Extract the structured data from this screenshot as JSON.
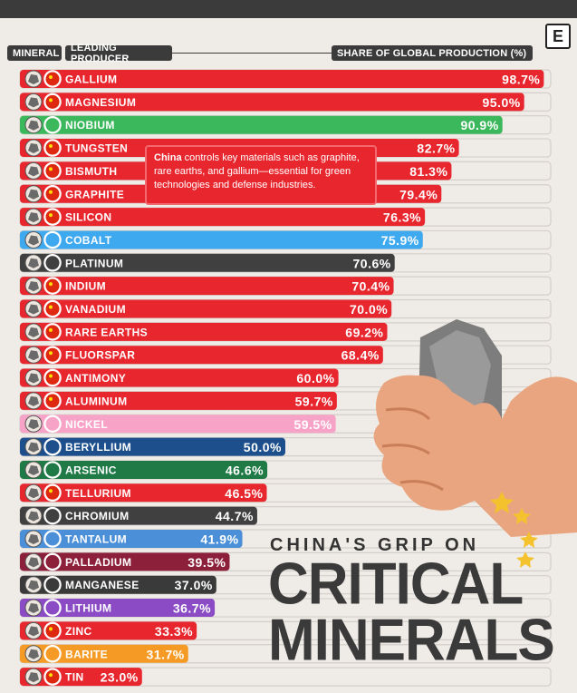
{
  "header": {
    "mineral_label": "MINERAL",
    "producer_label": "LEADING PRODUCER",
    "share_label": "SHARE OF GLOBAL PRODUCTION (%)",
    "logo_letter": "E"
  },
  "callout": {
    "bold": "China",
    "text": " controls key materials such as graphite, rare earths, and gallium—essential for green technologies and defense industries."
  },
  "title": {
    "line1": "CHINA'S GRIP ON",
    "line2": "CRITICAL",
    "line3": "MINERALS"
  },
  "colors": {
    "China": "#e8262e",
    "Brazil": "#3cb85c",
    "DR Congo": "#3fa9f0",
    "South Africa": "#404040",
    "Indonesia": "#f7a3c8",
    "USA": "#1c4f8c",
    "Peru": "#1f7a46",
    "Mozambique": "#4a8fd8",
    "Russia": "#8c1f3a",
    "Gabon": "#3a3a3a",
    "Australia": "#8a4bc4",
    "India": "#f59b25"
  },
  "chart_data": {
    "type": "bar",
    "xlim": [
      0,
      100
    ],
    "categories": [
      "GALLIUM",
      "MAGNESIUM",
      "NIOBIUM",
      "TUNGSTEN",
      "BISMUTH",
      "GRAPHITE",
      "SILICON",
      "COBALT",
      "PLATINUM",
      "INDIUM",
      "VANADIUM",
      "RARE EARTHS",
      "FLUORSPAR",
      "ANTIMONY",
      "ALUMINUM",
      "NICKEL",
      "BERYLLIUM",
      "ARSENIC",
      "TELLURIUM",
      "CHROMIUM",
      "TANTALUM",
      "PALLADIUM",
      "MANGANESE",
      "LITHIUM",
      "ZINC",
      "BARITE",
      "TIN"
    ],
    "values": [
      98.7,
      95.0,
      90.9,
      82.7,
      81.3,
      79.4,
      76.3,
      75.9,
      70.6,
      70.4,
      70.0,
      69.2,
      68.4,
      60.0,
      59.7,
      59.5,
      50.0,
      46.6,
      46.5,
      44.7,
      41.9,
      39.5,
      37.0,
      36.7,
      33.3,
      31.7,
      23.0
    ],
    "value_labels": [
      "98.7%",
      "95.0%",
      "90.9%",
      "82.7%",
      "81.3%",
      "79.4%",
      "76.3%",
      "75.9%",
      "70.6%",
      "70.4%",
      "70.0%",
      "69.2%",
      "68.4%",
      "60.0%",
      "59.7%",
      "59.5%",
      "50.0%",
      "46.6%",
      "46.5%",
      "44.7%",
      "41.9%",
      "39.5%",
      "37.0%",
      "36.7%",
      "33.3%",
      "31.7%",
      "23.0%"
    ],
    "producers": [
      "China",
      "China",
      "Brazil",
      "China",
      "China",
      "China",
      "China",
      "DR Congo",
      "South Africa",
      "China",
      "China",
      "China",
      "China",
      "China",
      "China",
      "Indonesia",
      "USA",
      "Peru",
      "China",
      "South Africa",
      "Mozambique",
      "Russia",
      "Gabon",
      "Australia",
      "China",
      "India",
      "China"
    ]
  }
}
